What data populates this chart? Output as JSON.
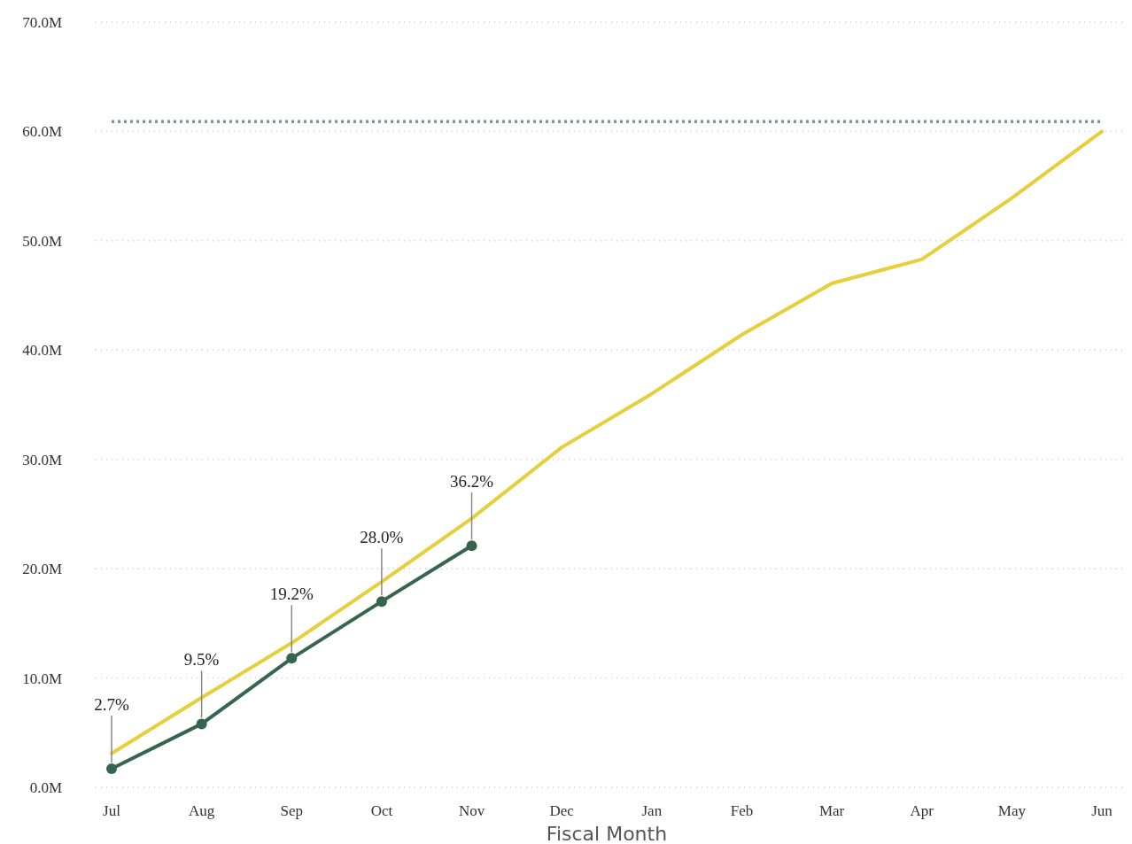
{
  "chart_data": {
    "type": "line",
    "xlabel": "Fiscal Month",
    "categories": [
      "Jul",
      "Aug",
      "Sep",
      "Oct",
      "Nov",
      "Dec",
      "Jan",
      "Feb",
      "Mar",
      "Apr",
      "May",
      "Jun"
    ],
    "series": [
      {
        "color": "#e5cf3a",
        "values": [
          3.1,
          8.2,
          13.2,
          18.8,
          24.6,
          31.1,
          36.0,
          41.4,
          46.1,
          48.3,
          53.9,
          60.0
        ],
        "marker": "none"
      },
      {
        "color": "#35654d",
        "values": [
          1.7,
          5.8,
          11.8,
          17.0,
          22.1,
          null,
          null,
          null,
          null,
          null,
          null,
          null
        ],
        "marker": "circle"
      }
    ],
    "annotations": [
      {
        "text": "2.7%",
        "x": "Jul",
        "y": 1.7
      },
      {
        "text": "9.5%",
        "x": "Aug",
        "y": 5.8
      },
      {
        "text": "19.2%",
        "x": "Sep",
        "y": 11.8
      },
      {
        "text": "28.0%",
        "x": "Oct",
        "y": 17.0
      },
      {
        "text": "36.2%",
        "x": "Nov",
        "y": 22.1
      }
    ],
    "ylim": [
      0,
      70
    ],
    "yticks": [
      {
        "value": 0,
        "label": "0.0M"
      },
      {
        "value": 10,
        "label": "10.0M"
      },
      {
        "value": 20,
        "label": "20.0M"
      },
      {
        "value": 30,
        "label": "30.0M"
      },
      {
        "value": 40,
        "label": "40.0M"
      },
      {
        "value": 50,
        "label": "50.0M"
      },
      {
        "value": 60,
        "label": "60.0M"
      },
      {
        "value": 70,
        "label": "70.0M"
      }
    ],
    "grid": "y",
    "line_style": "solid",
    "ref_lines": [
      {
        "axis": "y",
        "value": 60.9,
        "color": "#7a9a86",
        "line_style": "dotted"
      }
    ]
  }
}
